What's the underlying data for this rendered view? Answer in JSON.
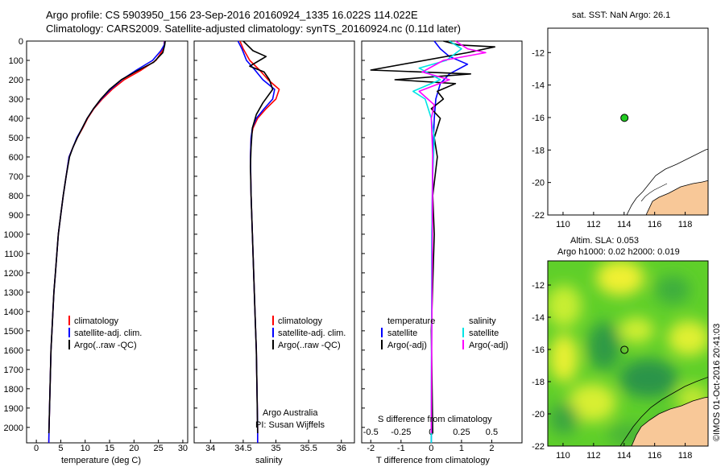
{
  "title": {
    "line1": "Argo profile: CS 5903950_156 23-Sep-2016 20160924_1335 16.022S 114.022E",
    "line2": "Climatology: CARS2009. Satellite-adjusted climatology: synTS_20160924.nc (0.11d later)"
  },
  "colors": {
    "climatology": "#ff0000",
    "satellite": "#0000ff",
    "argo": "#000000",
    "salinity_sat": "#00e5e5",
    "salinity_argo": "#ff00ff",
    "land": "#f8c898"
  },
  "depth_axis": {
    "ticks": [
      0,
      100,
      200,
      300,
      400,
      500,
      600,
      700,
      800,
      900,
      1000,
      1100,
      1200,
      1300,
      1400,
      1500,
      1600,
      1700,
      1800,
      1900,
      2000
    ],
    "range": [
      0,
      2080
    ]
  },
  "chart_data": [
    {
      "type": "line",
      "name": "temperature profile",
      "xlabel": "temperature (deg C)",
      "xlim": [
        -2,
        31
      ],
      "xticks": [
        0,
        5,
        10,
        15,
        20,
        25,
        30
      ],
      "legend": [
        "climatology",
        "satellite-adj. clim.",
        "Argo(..raw -QC)"
      ],
      "series": [
        {
          "name": "climatology",
          "color": "#ff0000",
          "points": [
            [
              26.2,
              0
            ],
            [
              26.2,
              20
            ],
            [
              25.8,
              50
            ],
            [
              24.5,
              100
            ],
            [
              21.5,
              150
            ],
            [
              18,
              200
            ],
            [
              15.5,
              250
            ],
            [
              13.5,
              300
            ],
            [
              11.8,
              350
            ],
            [
              10.5,
              400
            ],
            [
              9.5,
              450
            ],
            [
              8.4,
              500
            ],
            [
              7.5,
              550
            ],
            [
              6.7,
              600
            ],
            [
              6.1,
              700
            ],
            [
              5.5,
              800
            ],
            [
              5.0,
              900
            ],
            [
              4.5,
              1000
            ],
            [
              4.2,
              1100
            ],
            [
              3.9,
              1200
            ],
            [
              3.6,
              1300
            ],
            [
              3.4,
              1400
            ],
            [
              3.2,
              1500
            ],
            [
              3.0,
              1600
            ],
            [
              2.9,
              1700
            ],
            [
              2.8,
              1800
            ],
            [
              2.7,
              1900
            ],
            [
              2.6,
              2000
            ],
            [
              2.55,
              2080
            ]
          ]
        },
        {
          "name": "satellite-adj. clim.",
          "color": "#0000ff",
          "points": [
            [
              26.3,
              0
            ],
            [
              26.2,
              20
            ],
            [
              25.5,
              50
            ],
            [
              23.8,
              100
            ],
            [
              20.5,
              150
            ],
            [
              17.5,
              200
            ],
            [
              15.2,
              250
            ],
            [
              13.3,
              300
            ],
            [
              11.7,
              350
            ],
            [
              10.4,
              400
            ],
            [
              9.4,
              450
            ],
            [
              8.3,
              500
            ],
            [
              7.5,
              550
            ],
            [
              6.7,
              600
            ],
            [
              6.1,
              700
            ],
            [
              5.5,
              800
            ],
            [
              5.0,
              900
            ],
            [
              4.5,
              1000
            ],
            [
              4.2,
              1100
            ],
            [
              3.9,
              1200
            ],
            [
              3.6,
              1300
            ],
            [
              3.4,
              1400
            ],
            [
              3.2,
              1500
            ],
            [
              3.0,
              1600
            ],
            [
              2.9,
              1700
            ],
            [
              2.8,
              1800
            ],
            [
              2.7,
              1900
            ],
            [
              2.6,
              2000
            ],
            [
              2.55,
              2080
            ]
          ]
        },
        {
          "name": "Argo(..raw -QC)",
          "color": "#000000",
          "points": [
            [
              26.4,
              0
            ],
            [
              26.3,
              20
            ],
            [
              25.9,
              60
            ],
            [
              24.0,
              110
            ],
            [
              20.2,
              160
            ],
            [
              17.4,
              200
            ],
            [
              15.0,
              250
            ],
            [
              13.2,
              300
            ],
            [
              11.7,
              350
            ],
            [
              10.4,
              400
            ],
            [
              9.4,
              450
            ],
            [
              8.4,
              500
            ],
            [
              7.5,
              550
            ],
            [
              6.8,
              600
            ],
            [
              6.1,
              700
            ],
            [
              5.5,
              800
            ],
            [
              5.0,
              900
            ],
            [
              4.5,
              1000
            ],
            [
              4.2,
              1100
            ],
            [
              3.9,
              1200
            ],
            [
              3.6,
              1300
            ],
            [
              3.4,
              1400
            ],
            [
              3.2,
              1500
            ],
            [
              3.0,
              1600
            ],
            [
              2.9,
              1700
            ],
            [
              2.8,
              1800
            ],
            [
              2.7,
              1900
            ],
            [
              2.6,
              2000
            ],
            [
              2.55,
              2030
            ]
          ]
        }
      ]
    },
    {
      "type": "line",
      "name": "salinity profile",
      "xlabel": "salinity",
      "xlim": [
        33.75,
        36.2
      ],
      "xticks": [
        34,
        34.5,
        35,
        35.5,
        36
      ],
      "legend": [
        "climatology",
        "satellite-adj. clim.",
        "Argo(..raw -QC)"
      ],
      "annotation": [
        "Argo Australia",
        "PI: Susan Wijffels"
      ],
      "series": [
        {
          "name": "climatology",
          "color": "#ff0000",
          "points": [
            [
              34.45,
              0
            ],
            [
              34.5,
              40
            ],
            [
              34.6,
              100
            ],
            [
              34.75,
              150
            ],
            [
              34.88,
              200
            ],
            [
              35.05,
              250
            ],
            [
              35.0,
              300
            ],
            [
              34.85,
              350
            ],
            [
              34.72,
              400
            ],
            [
              34.65,
              450
            ],
            [
              34.62,
              500
            ],
            [
              34.61,
              600
            ],
            [
              34.62,
              800
            ],
            [
              34.64,
              1000
            ],
            [
              34.66,
              1200
            ],
            [
              34.68,
              1400
            ],
            [
              34.7,
              1600
            ],
            [
              34.71,
              1800
            ],
            [
              34.72,
              2000
            ],
            [
              34.72,
              2080
            ]
          ]
        },
        {
          "name": "satellite-adj. clim.",
          "color": "#0000ff",
          "points": [
            [
              34.42,
              0
            ],
            [
              34.48,
              40
            ],
            [
              34.55,
              100
            ],
            [
              34.68,
              150
            ],
            [
              34.8,
              200
            ],
            [
              34.98,
              250
            ],
            [
              34.95,
              300
            ],
            [
              34.82,
              350
            ],
            [
              34.7,
              400
            ],
            [
              34.64,
              450
            ],
            [
              34.62,
              500
            ],
            [
              34.61,
              600
            ],
            [
              34.62,
              800
            ],
            [
              34.64,
              1000
            ],
            [
              34.66,
              1200
            ],
            [
              34.68,
              1400
            ],
            [
              34.7,
              1600
            ],
            [
              34.71,
              1800
            ],
            [
              34.72,
              2000
            ],
            [
              34.72,
              2080
            ]
          ]
        },
        {
          "name": "Argo(..raw -QC)",
          "color": "#000000",
          "points": [
            [
              34.5,
              0
            ],
            [
              34.56,
              20
            ],
            [
              34.65,
              50
            ],
            [
              34.85,
              80
            ],
            [
              34.75,
              100
            ],
            [
              34.6,
              130
            ],
            [
              34.82,
              160
            ],
            [
              34.9,
              200
            ],
            [
              34.95,
              250
            ],
            [
              34.8,
              320
            ],
            [
              34.7,
              380
            ],
            [
              34.64,
              450
            ],
            [
              34.62,
              550
            ],
            [
              34.61,
              650
            ],
            [
              34.62,
              800
            ],
            [
              34.64,
              1000
            ],
            [
              34.66,
              1200
            ],
            [
              34.68,
              1400
            ],
            [
              34.7,
              1600
            ],
            [
              34.71,
              1800
            ],
            [
              34.72,
              2030
            ]
          ]
        }
      ]
    },
    {
      "type": "line",
      "name": "difference from climatology",
      "xlabel": "T difference from climatology",
      "xlabel_top": "S difference from climatology",
      "xlim": [
        -2.3,
        3.0
      ],
      "xticks": [
        -2,
        -1,
        0,
        1,
        2
      ],
      "xticks_top": [
        "-0.5",
        "-0.25",
        "0",
        "0.25",
        "0.5"
      ],
      "legend_temperature": [
        "temperature",
        "satellite",
        "Argo(-adj)"
      ],
      "legend_salinity": [
        "salinity",
        "satellite",
        "Argo(-adj)"
      ],
      "series": [
        {
          "name": "temperature satellite",
          "color": "#0000ff",
          "points": [
            [
              0.1,
              0
            ],
            [
              0.3,
              40
            ],
            [
              0.6,
              80
            ],
            [
              1.2,
              120
            ],
            [
              0.6,
              170
            ],
            [
              0.3,
              220
            ],
            [
              0.15,
              300
            ],
            [
              0.1,
              400
            ],
            [
              0.05,
              600
            ],
            [
              0.02,
              1000
            ],
            [
              0.0,
              2080
            ]
          ]
        },
        {
          "name": "temperature Argo(-adj)",
          "color": "#000000",
          "points": [
            [
              0.4,
              0
            ],
            [
              0.9,
              20
            ],
            [
              2.1,
              30
            ],
            [
              1.2,
              60
            ],
            [
              -2.0,
              150
            ],
            [
              1.3,
              170
            ],
            [
              -1.2,
              200
            ],
            [
              0.8,
              220
            ],
            [
              0.2,
              260
            ],
            [
              0.4,
              300
            ],
            [
              0.0,
              350
            ],
            [
              0.3,
              400
            ],
            [
              0.1,
              500
            ],
            [
              0.2,
              600
            ],
            [
              0.05,
              800
            ],
            [
              0.1,
              1000
            ],
            [
              0.0,
              1500
            ],
            [
              0.05,
              2030
            ]
          ]
        },
        {
          "name": "salinity satellite",
          "color": "#00e5e5",
          "points": [
            [
              0.6,
              0
            ],
            [
              1.0,
              40
            ],
            [
              0.5,
              100
            ],
            [
              -0.4,
              140
            ],
            [
              0.3,
              200
            ],
            [
              -0.6,
              260
            ],
            [
              -0.2,
              300
            ],
            [
              0.0,
              400
            ],
            [
              0.1,
              500
            ],
            [
              0.05,
              700
            ],
            [
              0.02,
              1000
            ],
            [
              0.0,
              2080
            ]
          ]
        },
        {
          "name": "salinity Argo(-adj)",
          "color": "#ff00ff",
          "points": [
            [
              0.8,
              0
            ],
            [
              1.2,
              40
            ],
            [
              1.8,
              60
            ],
            [
              0.4,
              100
            ],
            [
              -0.3,
              160
            ],
            [
              0.6,
              200
            ],
            [
              -0.4,
              260
            ],
            [
              0.1,
              330
            ],
            [
              0.0,
              400
            ],
            [
              0.05,
              600
            ],
            [
              0.0,
              2030
            ]
          ]
        }
      ]
    },
    {
      "type": "scatter",
      "name": "SST map",
      "title": "sat. SST: NaN Argo: 26.1",
      "xlim": [
        109,
        119.5
      ],
      "ylim": [
        -22,
        -10.5
      ],
      "xticks": [
        110,
        112,
        114,
        116,
        118
      ],
      "yticks": [
        -12,
        -14,
        -16,
        -18,
        -20,
        -22
      ],
      "point": {
        "lon": 114.022,
        "lat": -16.022
      }
    },
    {
      "type": "heatmap",
      "name": "SLA map",
      "title": "Altim. SLA: 0.053",
      "subtitle": "Argo h1000: 0.02 h2000: 0.019",
      "xlim": [
        109,
        119.5
      ],
      "ylim": [
        -22,
        -10.5
      ],
      "xticks": [
        110,
        112,
        114,
        116,
        118
      ],
      "yticks": [
        -12,
        -14,
        -16,
        -18,
        -20,
        -22
      ],
      "point": {
        "lon": 114.022,
        "lat": -16.022
      }
    }
  ],
  "credit": "©IMOS 01-Oct-2016 20:41:03"
}
